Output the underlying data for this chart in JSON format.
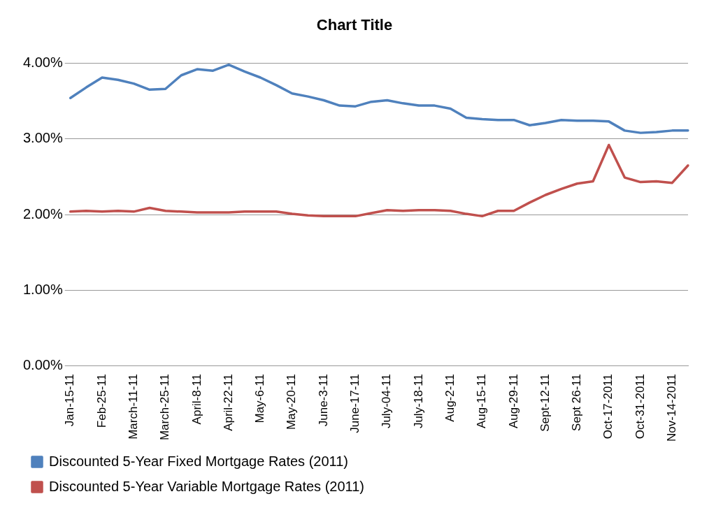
{
  "chart_data": {
    "type": "line",
    "title": "Chart Title",
    "categories": [
      "Jan-15-11",
      null,
      "Feb-25-11",
      null,
      "March-11-11",
      null,
      "March-25-11",
      null,
      "April-8-11",
      null,
      "April-22-11",
      null,
      "May-6-11",
      null,
      "May-20-11",
      null,
      "June-3-11",
      null,
      "June-17-11",
      null,
      "July-04-11",
      null,
      "July-18-11",
      null,
      "Aug-2-11",
      null,
      "Aug-15-11",
      null,
      "Aug-29-11",
      null,
      "Sept-12-11",
      null,
      "Sept 26-11",
      null,
      "Oct-17-2011",
      null,
      "Oct-31-2011",
      null,
      "Nov-14-2011",
      null
    ],
    "series": [
      {
        "name": "Discounted 5-Year Fixed Mortgage Rates (2011)",
        "color": "#4f81bd",
        "values": [
          3.54,
          3.68,
          3.81,
          3.78,
          3.73,
          3.65,
          3.66,
          3.84,
          3.92,
          3.9,
          3.98,
          3.89,
          3.81,
          3.71,
          3.6,
          3.56,
          3.51,
          3.44,
          3.43,
          3.49,
          3.51,
          3.47,
          3.44,
          3.44,
          3.4,
          3.28,
          3.26,
          3.25,
          3.25,
          3.18,
          3.21,
          3.25,
          3.24,
          3.24,
          3.23,
          3.11,
          3.08,
          3.09,
          3.11,
          3.11
        ]
      },
      {
        "name": "Discounted 5-Year Variable Mortgage Rates (2011)",
        "color": "#c0504d",
        "values": [
          2.04,
          2.05,
          2.04,
          2.05,
          2.04,
          2.09,
          2.05,
          2.04,
          2.03,
          2.03,
          2.03,
          2.04,
          2.04,
          2.04,
          2.01,
          1.99,
          1.98,
          1.98,
          1.98,
          2.02,
          2.06,
          2.05,
          2.06,
          2.06,
          2.05,
          2.01,
          1.98,
          2.05,
          2.05,
          2.16,
          2.26,
          2.34,
          2.41,
          2.44,
          2.92,
          2.49,
          2.43,
          2.44,
          2.42,
          2.65
        ]
      }
    ],
    "ylim": [
      0,
      4
    ],
    "yticks": [
      {
        "value": 0,
        "label": "0.00%"
      },
      {
        "value": 1,
        "label": "1.00%"
      },
      {
        "value": 2,
        "label": "2.00%"
      },
      {
        "value": 3,
        "label": "3.00%"
      },
      {
        "value": 4,
        "label": "4.00%"
      }
    ],
    "grid": "y",
    "legend": "bottom",
    "marker": "none",
    "line_style": "solid"
  }
}
